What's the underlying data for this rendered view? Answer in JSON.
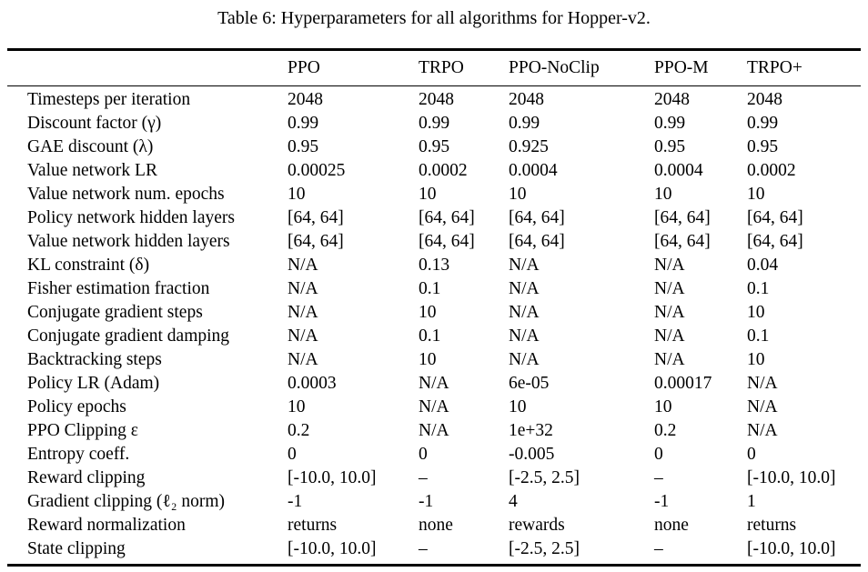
{
  "caption": "Table 6: Hyperparameters for all algorithms for Hopper-v2.",
  "table": {
    "columns": [
      "PPO",
      "TRPO",
      "PPO-NoClip",
      "PPO-M",
      "TRPO+"
    ],
    "rows": [
      {
        "label": "Timesteps per iteration",
        "values": [
          "2048",
          "2048",
          "2048",
          "2048",
          "2048"
        ]
      },
      {
        "label": "Discount factor (γ)",
        "values": [
          "0.99",
          "0.99",
          "0.99",
          "0.99",
          "0.99"
        ]
      },
      {
        "label": "GAE discount (λ)",
        "values": [
          "0.95",
          "0.95",
          "0.925",
          "0.95",
          "0.95"
        ]
      },
      {
        "label": "Value network LR",
        "values": [
          "0.00025",
          "0.0002",
          "0.0004",
          "0.0004",
          "0.0002"
        ]
      },
      {
        "label": "Value network num. epochs",
        "values": [
          "10",
          "10",
          "10",
          "10",
          "10"
        ]
      },
      {
        "label": "Policy network hidden layers",
        "values": [
          "[64, 64]",
          "[64, 64]",
          "[64, 64]",
          "[64, 64]",
          "[64, 64]"
        ]
      },
      {
        "label": "Value network hidden layers",
        "values": [
          "[64, 64]",
          "[64, 64]",
          "[64, 64]",
          "[64, 64]",
          "[64, 64]"
        ]
      },
      {
        "label": "KL constraint (δ)",
        "values": [
          "N/A",
          "0.13",
          "N/A",
          "N/A",
          "0.04"
        ]
      },
      {
        "label": "Fisher estimation fraction",
        "values": [
          "N/A",
          "0.1",
          "N/A",
          "N/A",
          "0.1"
        ]
      },
      {
        "label": "Conjugate gradient steps",
        "values": [
          "N/A",
          "10",
          "N/A",
          "N/A",
          "10"
        ]
      },
      {
        "label": "Conjugate gradient damping",
        "values": [
          "N/A",
          "0.1",
          "N/A",
          "N/A",
          "0.1"
        ]
      },
      {
        "label": "Backtracking steps",
        "values": [
          "N/A",
          "10",
          "N/A",
          "N/A",
          "10"
        ]
      },
      {
        "label": "Policy LR (Adam)",
        "values": [
          "0.0003",
          "N/A",
          "6e-05",
          "0.00017",
          "N/A"
        ]
      },
      {
        "label": "Policy epochs",
        "values": [
          "10",
          "N/A",
          "10",
          "10",
          "N/A"
        ]
      },
      {
        "label": "PPO Clipping ε",
        "values": [
          "0.2",
          "N/A",
          "1e+32",
          "0.2",
          "N/A"
        ]
      },
      {
        "label": "Entropy coeff.",
        "values": [
          "0",
          "0",
          "-0.005",
          "0",
          "0"
        ]
      },
      {
        "label": "Reward clipping",
        "values": [
          "[-10.0, 10.0]",
          "–",
          "[-2.5, 2.5]",
          "–",
          "[-10.0, 10.0]"
        ]
      },
      {
        "label": "Gradient clipping (ℓ₂ norm)",
        "values": [
          "-1",
          "-1",
          "4",
          "-1",
          "1"
        ]
      },
      {
        "label": "Reward normalization",
        "values": [
          "returns",
          "none",
          "rewards",
          "none",
          "returns"
        ]
      },
      {
        "label": "State clipping",
        "values": [
          "[-10.0, 10.0]",
          "–",
          "[-2.5, 2.5]",
          "–",
          "[-10.0, 10.0]"
        ]
      }
    ]
  }
}
